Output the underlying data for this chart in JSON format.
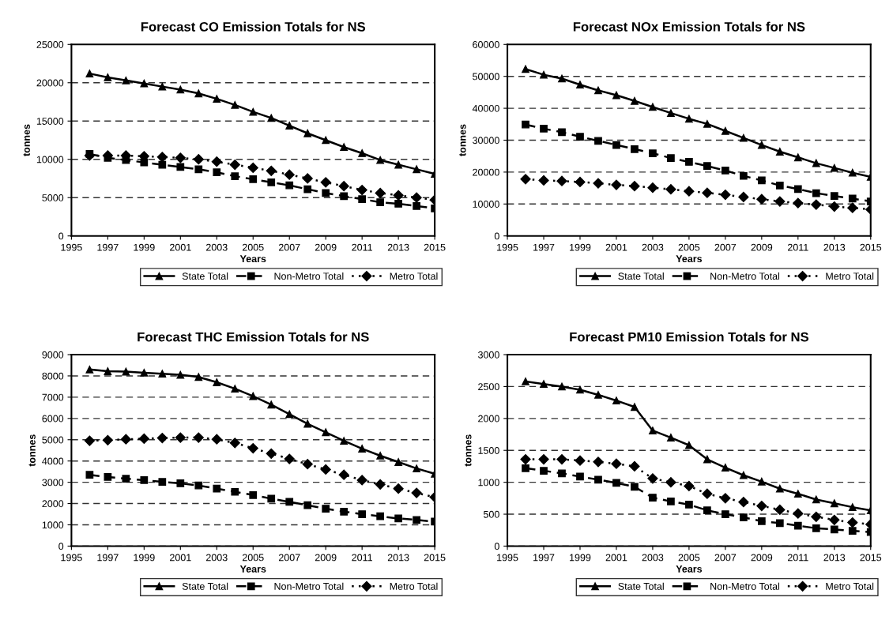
{
  "chart_data": [
    {
      "type": "line",
      "title": "Forecast CO Emission Totals for NS",
      "xlabel": "Years",
      "ylabel": "tonnes",
      "x": [
        1996,
        1997,
        1998,
        1999,
        2000,
        2001,
        2002,
        2003,
        2004,
        2005,
        2006,
        2007,
        2008,
        2009,
        2010,
        2011,
        2012,
        2013,
        2014,
        2015
      ],
      "xlim": [
        1995,
        2015
      ],
      "xticks": [
        1995,
        1997,
        1999,
        2001,
        2003,
        2005,
        2007,
        2009,
        2011,
        2013,
        2015
      ],
      "ylim": [
        0,
        25000
      ],
      "yticks": [
        0,
        5000,
        10000,
        15000,
        20000,
        25000
      ],
      "grid": "y",
      "legend": "bottom",
      "series": [
        {
          "name": "State Total",
          "color": "#000000",
          "marker": "triangle",
          "line_style": "solid",
          "values": [
            21200,
            20700,
            20300,
            19900,
            19500,
            19100,
            18600,
            17900,
            17100,
            16200,
            15400,
            14400,
            13400,
            12500,
            11600,
            10800,
            9900,
            9300,
            8700,
            8100
          ]
        },
        {
          "name": "Non-Metro Total",
          "color": "#000000",
          "marker": "square",
          "line_style": "dashed",
          "values": [
            10700,
            10200,
            9900,
            9600,
            9300,
            9000,
            8700,
            8300,
            7800,
            7400,
            7000,
            6600,
            6100,
            5600,
            5200,
            4800,
            4400,
            4200,
            3900,
            3600
          ]
        },
        {
          "name": "Metro Total",
          "color": "#000000",
          "marker": "diamond",
          "line_style": "dotted",
          "values": [
            10500,
            10500,
            10500,
            10400,
            10300,
            10200,
            10000,
            9700,
            9300,
            8900,
            8500,
            8000,
            7500,
            7000,
            6500,
            6000,
            5600,
            5300,
            5000,
            4700
          ]
        }
      ]
    },
    {
      "type": "line",
      "title": "Forecast NOx Emission Totals for NS",
      "xlabel": "Years",
      "ylabel": "tonnes",
      "x": [
        1996,
        1997,
        1998,
        1999,
        2000,
        2001,
        2002,
        2003,
        2004,
        2005,
        2006,
        2007,
        2008,
        2009,
        2010,
        2011,
        2012,
        2013,
        2014,
        2015
      ],
      "xlim": [
        1995,
        2015
      ],
      "xticks": [
        1995,
        1997,
        1999,
        2001,
        2003,
        2005,
        2007,
        2009,
        2011,
        2013,
        2015
      ],
      "ylim": [
        0,
        60000
      ],
      "yticks": [
        0,
        10000,
        20000,
        30000,
        40000,
        50000,
        60000
      ],
      "grid": "y",
      "legend": "bottom",
      "series": [
        {
          "name": "State Total",
          "color": "#000000",
          "marker": "triangle",
          "line_style": "solid",
          "values": [
            52300,
            50500,
            49300,
            47400,
            45600,
            44100,
            42300,
            40400,
            38500,
            36700,
            35100,
            32900,
            30700,
            28500,
            26400,
            24600,
            22800,
            21300,
            19800,
            18500
          ]
        },
        {
          "name": "Non-Metro Total",
          "color": "#000000",
          "marker": "square",
          "line_style": "dashed",
          "values": [
            34900,
            33600,
            32500,
            31100,
            29800,
            28500,
            27200,
            25900,
            24400,
            23200,
            21900,
            20500,
            18800,
            17400,
            15800,
            14700,
            13400,
            12500,
            11700,
            10800
          ]
        },
        {
          "name": "Metro Total",
          "color": "#000000",
          "marker": "diamond",
          "line_style": "dotted",
          "values": [
            17800,
            17400,
            17200,
            16900,
            16500,
            16000,
            15600,
            15100,
            14600,
            14000,
            13500,
            12900,
            12200,
            11500,
            10800,
            10300,
            9800,
            9200,
            8800,
            8300
          ]
        }
      ]
    },
    {
      "type": "line",
      "title": "Forecast THC Emission Totals for NS",
      "xlabel": "Years",
      "ylabel": "tonnes",
      "x": [
        1996,
        1997,
        1998,
        1999,
        2000,
        2001,
        2002,
        2003,
        2004,
        2005,
        2006,
        2007,
        2008,
        2009,
        2010,
        2011,
        2012,
        2013,
        2014,
        2015
      ],
      "xlim": [
        1995,
        2015
      ],
      "xticks": [
        1995,
        1997,
        1999,
        2001,
        2003,
        2005,
        2007,
        2009,
        2011,
        2013,
        2015
      ],
      "ylim": [
        0,
        9000
      ],
      "yticks": [
        0,
        1000,
        2000,
        3000,
        4000,
        5000,
        6000,
        7000,
        8000,
        9000
      ],
      "grid": "y",
      "legend": "bottom",
      "series": [
        {
          "name": "State Total",
          "color": "#000000",
          "marker": "triangle",
          "line_style": "solid",
          "values": [
            8300,
            8220,
            8200,
            8150,
            8100,
            8050,
            7950,
            7700,
            7400,
            7050,
            6650,
            6200,
            5750,
            5350,
            4950,
            4580,
            4250,
            3950,
            3650,
            3400
          ]
        },
        {
          "name": "Non-Metro Total",
          "color": "#000000",
          "marker": "square",
          "line_style": "dashed",
          "values": [
            3350,
            3250,
            3170,
            3100,
            3020,
            2950,
            2850,
            2700,
            2550,
            2400,
            2230,
            2080,
            1920,
            1760,
            1620,
            1500,
            1400,
            1300,
            1230,
            1150
          ]
        },
        {
          "name": "Metro Total",
          "color": "#000000",
          "marker": "diamond",
          "line_style": "dotted",
          "values": [
            4950,
            4980,
            5020,
            5050,
            5080,
            5100,
            5100,
            5020,
            4850,
            4600,
            4350,
            4100,
            3850,
            3600,
            3350,
            3100,
            2900,
            2700,
            2500,
            2300
          ]
        }
      ]
    },
    {
      "type": "line",
      "title": "Forecast PM10 Emission Totals for NS",
      "xlabel": "Years",
      "ylabel": "tonnes",
      "x": [
        1996,
        1997,
        1998,
        1999,
        2000,
        2001,
        2002,
        2003,
        2004,
        2005,
        2006,
        2007,
        2008,
        2009,
        2010,
        2011,
        2012,
        2013,
        2014,
        2015
      ],
      "xlim": [
        1995,
        2015
      ],
      "xticks": [
        1995,
        1997,
        1999,
        2001,
        2003,
        2005,
        2007,
        2009,
        2011,
        2013,
        2015
      ],
      "ylim": [
        0,
        3000
      ],
      "yticks": [
        0,
        500,
        1000,
        1500,
        2000,
        2500,
        3000
      ],
      "grid": "y",
      "legend": "bottom",
      "series": [
        {
          "name": "State Total",
          "color": "#000000",
          "marker": "triangle",
          "line_style": "solid",
          "values": [
            2580,
            2540,
            2500,
            2450,
            2370,
            2280,
            2180,
            1810,
            1700,
            1580,
            1360,
            1230,
            1110,
            1010,
            900,
            820,
            730,
            670,
            610,
            560
          ]
        },
        {
          "name": "Non-Metro Total",
          "color": "#000000",
          "marker": "square",
          "line_style": "dashed",
          "values": [
            1220,
            1180,
            1140,
            1090,
            1040,
            990,
            930,
            760,
            700,
            650,
            560,
            500,
            450,
            390,
            360,
            320,
            280,
            260,
            240,
            220
          ]
        },
        {
          "name": "Metro Total",
          "color": "#000000",
          "marker": "diamond",
          "line_style": "dotted",
          "values": [
            1360,
            1360,
            1360,
            1340,
            1320,
            1290,
            1250,
            1060,
            1000,
            940,
            820,
            750,
            690,
            630,
            570,
            510,
            460,
            410,
            370,
            340
          ]
        }
      ]
    }
  ]
}
